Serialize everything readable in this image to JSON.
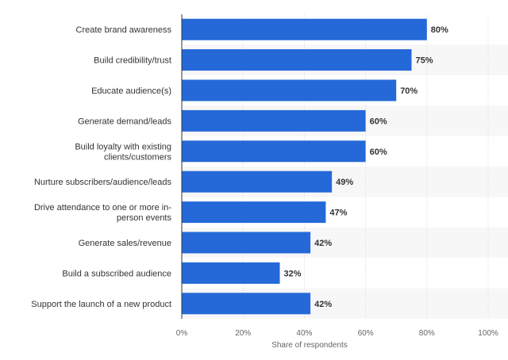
{
  "chart_data": {
    "type": "bar",
    "orientation": "horizontal",
    "categories": [
      [
        "Create brand awareness"
      ],
      [
        "Build credibility/trust"
      ],
      [
        "Educate audience(s)"
      ],
      [
        "Generate demand/leads"
      ],
      [
        "Build loyalty with existing",
        "clients/customers"
      ],
      [
        "Nurture subscribers/audience/leads"
      ],
      [
        "Drive attendance to one or more in-",
        "person events"
      ],
      [
        "Generate sales/revenue"
      ],
      [
        "Build a subscribed audience"
      ],
      [
        "Support the launch of a new product"
      ]
    ],
    "values": [
      80,
      75,
      70,
      60,
      60,
      49,
      47,
      42,
      32,
      42
    ],
    "value_labels": [
      "80%",
      "75%",
      "70%",
      "60%",
      "60%",
      "49%",
      "47%",
      "42%",
      "32%",
      "42%"
    ],
    "xlim": [
      0,
      100
    ],
    "ticks": [
      0,
      20,
      40,
      60,
      80,
      100
    ],
    "tick_labels": [
      "0%",
      "20%",
      "40%",
      "60%",
      "80%",
      "100%"
    ],
    "xlabel": "Share of respondents",
    "ylabel": "",
    "grid": true,
    "bar_color": "#2569d8",
    "band_color": "#f7f7f7",
    "grid_color": "#d8d8d8",
    "axis_color": "#333333"
  }
}
